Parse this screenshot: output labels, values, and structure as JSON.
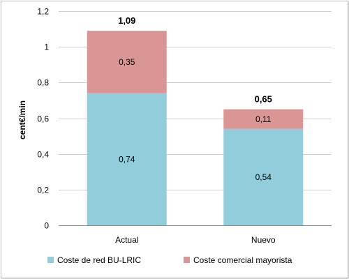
{
  "chart_data": {
    "type": "bar",
    "stacked": true,
    "categories": [
      "Actual",
      "Nuevo"
    ],
    "series": [
      {
        "name": "Coste de red BU-LRIC",
        "values": [
          0.74,
          0.54
        ],
        "labels": [
          "0,74",
          "0,54"
        ],
        "color": "#92cddc"
      },
      {
        "name": "Coste comercial mayorista",
        "values": [
          0.35,
          0.11
        ],
        "labels": [
          "0,35",
          "0,11"
        ],
        "color": "#d99694"
      }
    ],
    "totals": [
      1.09,
      0.65
    ],
    "total_labels": [
      "1,09",
      "0,65"
    ],
    "ylabel": "cent€/min",
    "ylim": [
      0,
      1.2
    ],
    "yticks": [
      0,
      0.2,
      0.4,
      0.6,
      0.8,
      1,
      1.2
    ],
    "ytick_labels": [
      "0",
      "0,2",
      "0,4",
      "0,6",
      "0,8",
      "1",
      "1,2"
    ],
    "grid": true,
    "legend_position": "bottom"
  }
}
